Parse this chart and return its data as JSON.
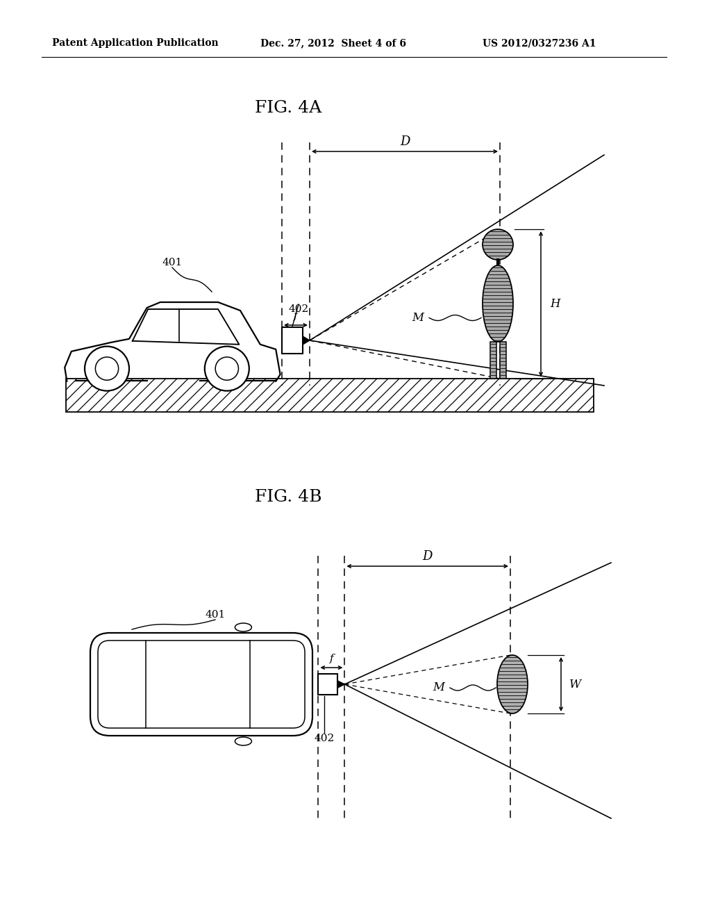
{
  "bg_color": "#ffffff",
  "line_color": "#000000",
  "header_left": "Patent Application Publication",
  "header_center": "Dec. 27, 2012  Sheet 4 of 6",
  "header_right": "US 2012/0327236 A1",
  "fig4a_title": "FIG. 4A",
  "fig4b_title": "FIG. 4B",
  "label_401": "401",
  "label_402": "402",
  "label_f": "f",
  "label_D": "D",
  "label_M": "M",
  "label_H": "H",
  "label_W": "W",
  "gray_person": "#888888",
  "gray_ellipse": "#999999"
}
